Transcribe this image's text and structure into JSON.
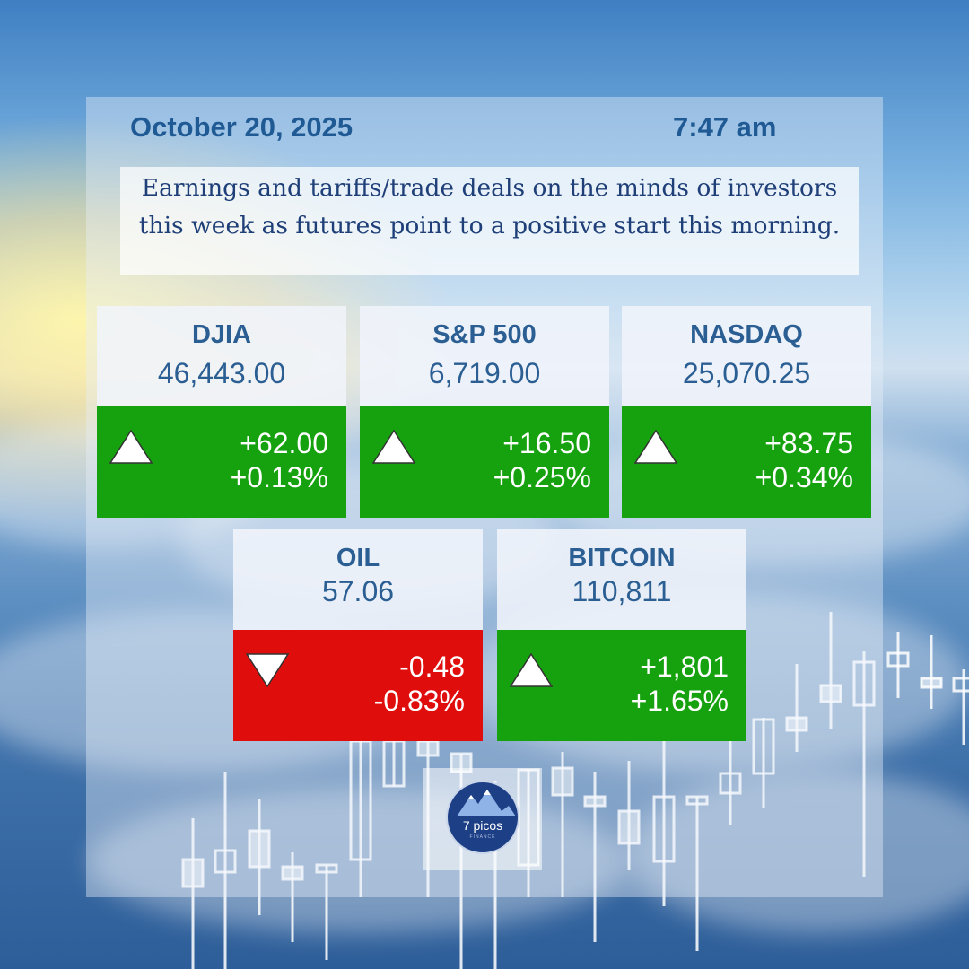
{
  "header": {
    "date": "October 20, 2025",
    "time": "7:47 am",
    "headline": "Earnings and tariffs/trade deals on the minds of investors this week as futures point to a positive start this morning."
  },
  "tickers": [
    {
      "name": "DJIA",
      "price": "46,443.00",
      "change": "+62.00",
      "percent": "+0.13%",
      "direction": "up"
    },
    {
      "name": "S&P 500",
      "price": "6,719.00",
      "change": "+16.50",
      "percent": "+0.25%",
      "direction": "up"
    },
    {
      "name": "NASDAQ",
      "price": "25,070.25",
      "change": "+83.75",
      "percent": "+0.34%",
      "direction": "up"
    },
    {
      "name": "OIL",
      "price": "57.06",
      "change": "-0.48",
      "percent": "-0.83%",
      "direction": "down"
    },
    {
      "name": "BITCOIN",
      "price": "110,811",
      "change": "+1,801",
      "percent": "+1.65%",
      "direction": "up"
    }
  ],
  "colors": {
    "up": "#16a20e",
    "down": "#e00d0d",
    "header_text": "#1f5a94",
    "headline_text": "#1f3f78"
  },
  "logo": {
    "name": "7 picos",
    "subtitle": "FINANCE",
    "icon": "mountain-icon"
  }
}
